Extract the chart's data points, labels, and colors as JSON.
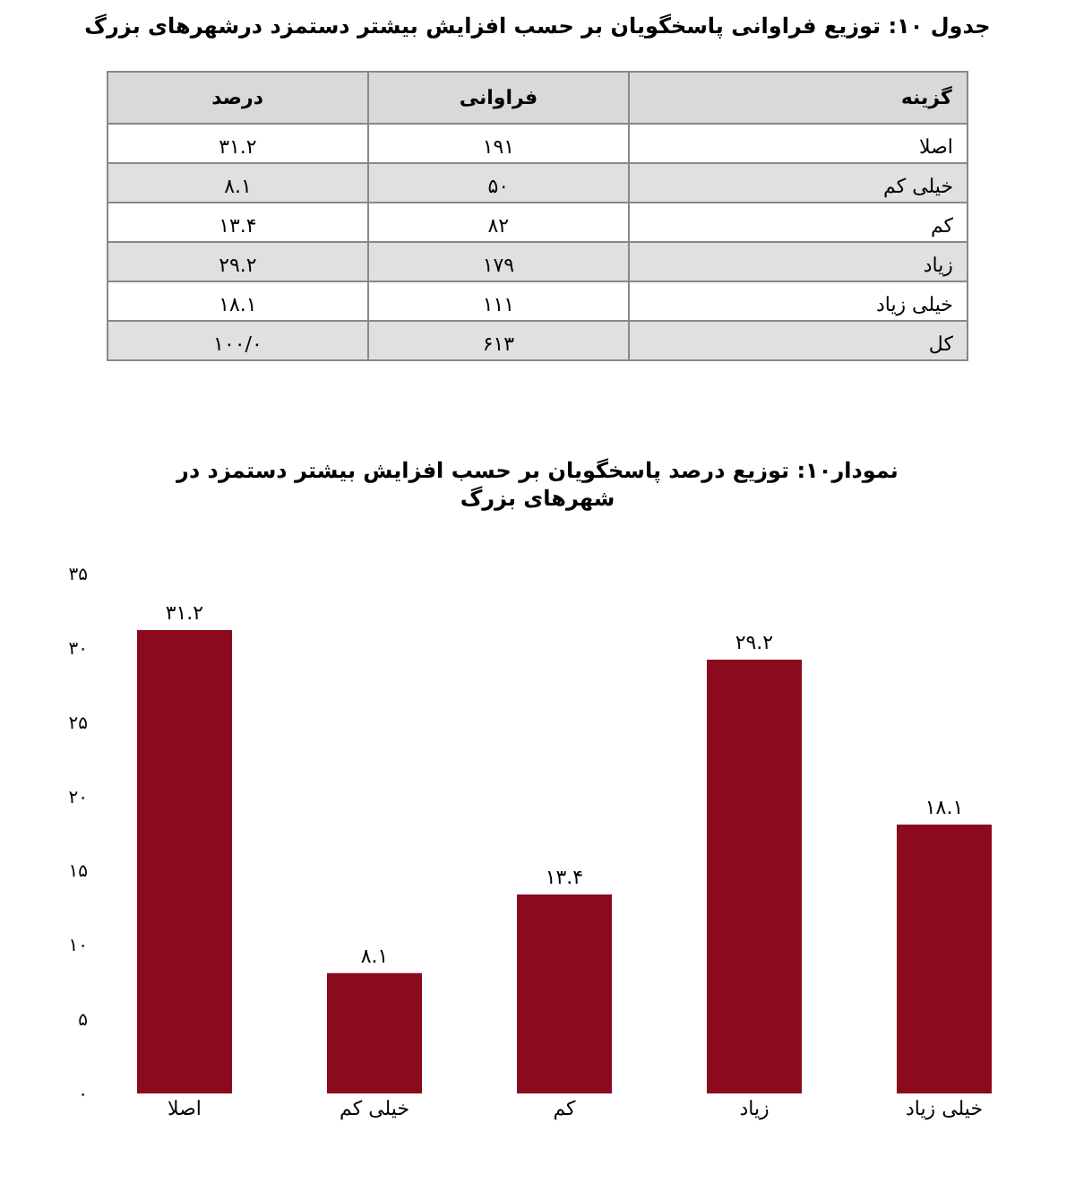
{
  "chart_data": [
    {
      "type": "other",
      "title": "جدول ۱۰: توزیع فراوانی پاسخگویان بر حسب افزایش بیشتر دستمزد درشهرهای بزرگ",
      "annotations": [
        "گزینه",
        "فراوانی",
        "درصد",
        "اصلا",
        "۱۹۱",
        "۳۱.۲",
        "خیلی کم",
        "۵۰",
        "۸.۱",
        "کم",
        "۸۲",
        "۱۳.۴",
        "زیاد",
        "۱۷۹",
        "۲۹.۲",
        "خیلی زیاد",
        "۱۱۱",
        "۱۸.۱",
        "کل",
        "۶۱۳",
        "۱۰۰/۰"
      ]
    },
    {
      "type": "bar",
      "title": "نمودار۱۰: توزیع درصد پاسخگویان بر حسب افزایش بیشتر دستمزد در شهرهای بزرگ",
      "categories": [
        "اصلا",
        "خیلی کم",
        "کم",
        "زیاد",
        "خیلی زیاد"
      ],
      "values": [
        31.2,
        8.1,
        13.4,
        29.2,
        18.1
      ],
      "value_labels": [
        "۳۱.۲",
        "۸.۱",
        "۱۳.۴",
        "۲۹.۲",
        "۱۸.۱"
      ],
      "color": "#8b0a1e",
      "ylim": [
        0,
        35
      ],
      "yticks": [
        {
          "value": 0,
          "label": "۰"
        },
        {
          "value": 5,
          "label": "۵"
        },
        {
          "value": 10,
          "label": "۱۰"
        },
        {
          "value": 15,
          "label": "۱۵"
        },
        {
          "value": 20,
          "label": "۲۰"
        },
        {
          "value": 25,
          "label": "۲۵"
        },
        {
          "value": 30,
          "label": "۳۰"
        },
        {
          "value": 35,
          "label": "۳۵"
        }
      ],
      "grid": false
    }
  ]
}
